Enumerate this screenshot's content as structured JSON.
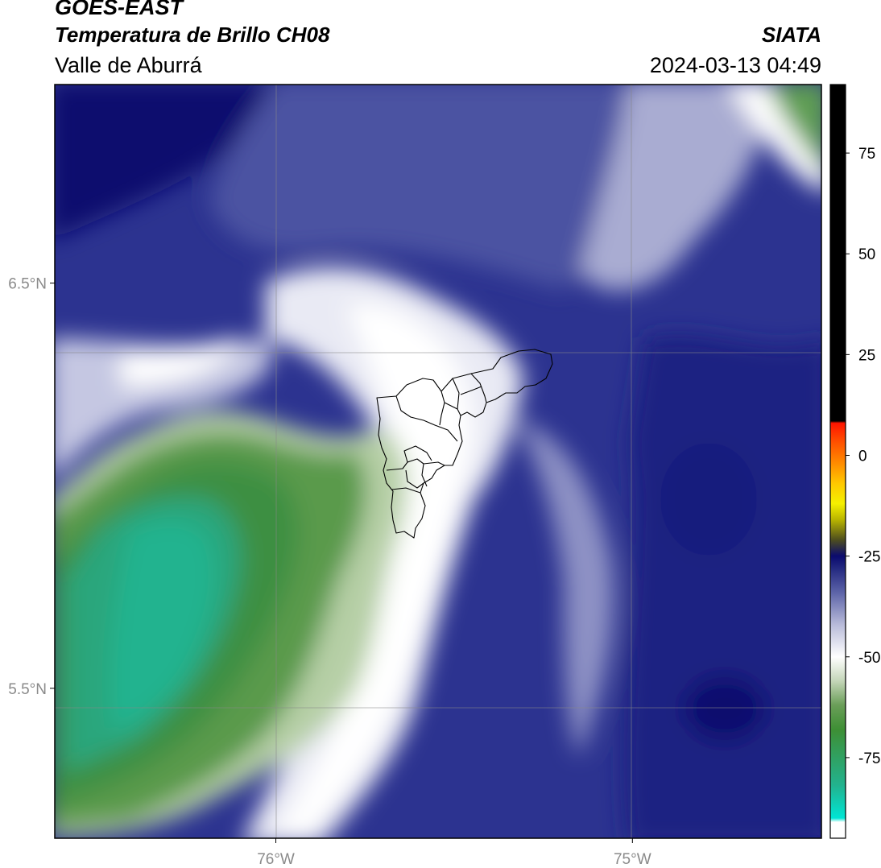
{
  "header": {
    "satellite": "GOES-EAST",
    "product": "Temperatura de Brillo CH08",
    "region": "Valle de Aburrá",
    "organization": "SIATA",
    "datetime": "2024-03-13 04:49"
  },
  "map": {
    "lat_range": [
      5.13,
      6.99
    ],
    "lon_range": [
      -76.62,
      -74.47
    ],
    "lat_ticks": [
      {
        "value": 6.5,
        "label": "6.5°N"
      },
      {
        "value": 5.5,
        "label": "5.5°N"
      }
    ],
    "lon_ticks": [
      {
        "value": -76,
        "label": "76°W"
      },
      {
        "value": -75,
        "label": "75°W"
      }
    ],
    "gridlines": true,
    "overlay": "Valle de Aburrá municipality boundaries",
    "grid_color": "#888888"
  },
  "colorbar": {
    "range": [
      -95,
      92
    ],
    "ticks": [
      75,
      50,
      25,
      0,
      -25,
      -50,
      -75
    ],
    "stops": [
      {
        "v": -95,
        "c": "#ffffff"
      },
      {
        "v": -91,
        "c": "#ffffff"
      },
      {
        "v": -90,
        "c": "#00e5d4"
      },
      {
        "v": -82,
        "c": "#22b38f"
      },
      {
        "v": -68,
        "c": "#3e8f35"
      },
      {
        "v": -62,
        "c": "#6a9e58"
      },
      {
        "v": -56,
        "c": "#c4d6b8"
      },
      {
        "v": -50,
        "c": "#ffffff"
      },
      {
        "v": -42,
        "c": "#b8bbd9"
      },
      {
        "v": -34,
        "c": "#5c63a8"
      },
      {
        "v": -28,
        "c": "#232880"
      },
      {
        "v": -25,
        "c": "#0a0a6e"
      },
      {
        "v": -21,
        "c": "#4d4d1e"
      },
      {
        "v": -16,
        "c": "#b8b400"
      },
      {
        "v": -12,
        "c": "#f5f000"
      },
      {
        "v": -7,
        "c": "#ffc800"
      },
      {
        "v": -2,
        "c": "#ff8c00"
      },
      {
        "v": 4,
        "c": "#ff4800"
      },
      {
        "v": 8,
        "c": "#ff1400"
      },
      {
        "v": 8.5,
        "c": "#000000"
      },
      {
        "v": 92,
        "c": "#000000"
      }
    ]
  }
}
